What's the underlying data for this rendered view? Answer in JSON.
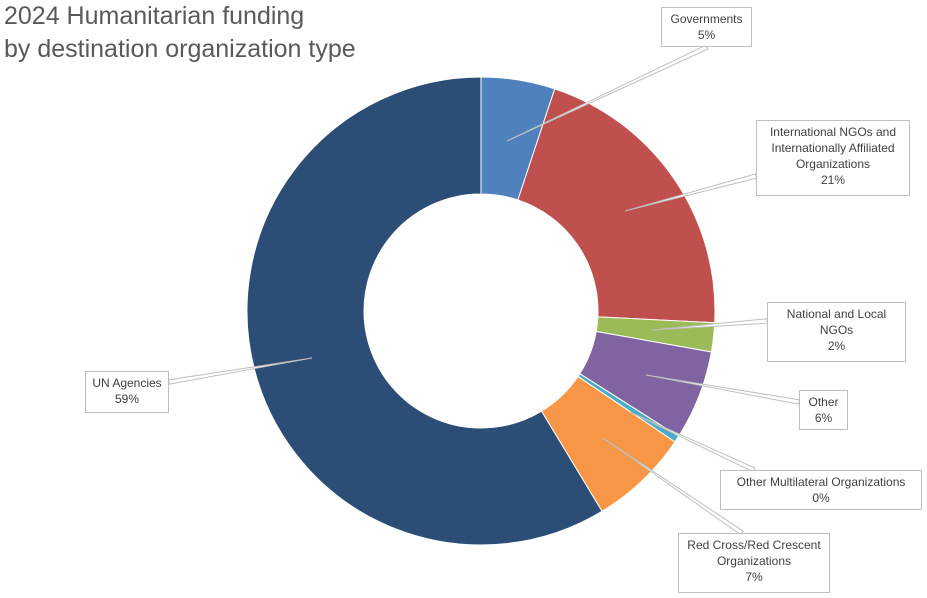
{
  "chart_data": {
    "type": "pie",
    "variant": "doughnut",
    "title_lines": [
      "2024 Humanitarian funding",
      "by destination organization type"
    ],
    "slices": [
      {
        "label_lines": [
          "Governments"
        ],
        "percent_label": "5%",
        "value": 5.1,
        "color": "#4f81bd"
      },
      {
        "label_lines": [
          "International NGOs and",
          "Internationally Affiliated",
          "Organizations"
        ],
        "percent_label": "21%",
        "value": 20.7,
        "color": "#c0504d"
      },
      {
        "label_lines": [
          "National and Local",
          "NGOs"
        ],
        "percent_label": "2%",
        "value": 2.0,
        "color": "#9bbb59"
      },
      {
        "label_lines": [
          "Other"
        ],
        "percent_label": "6%",
        "value": 6.2,
        "color": "#8064a2"
      },
      {
        "label_lines": [
          "Other Multilateral Organizations"
        ],
        "percent_label": "0%",
        "value": 0.45,
        "color": "#4bacc6"
      },
      {
        "label_lines": [
          "Red Cross/Red Crescent",
          "Organizations"
        ],
        "percent_label": "7%",
        "value": 6.9,
        "color": "#f79646"
      },
      {
        "label_lines": [
          "UN Agencies"
        ],
        "percent_label": "59%",
        "value": 58.65,
        "color": "#2c4d75"
      }
    ],
    "legend": "none",
    "data_labels": "callouts with leader lines"
  }
}
